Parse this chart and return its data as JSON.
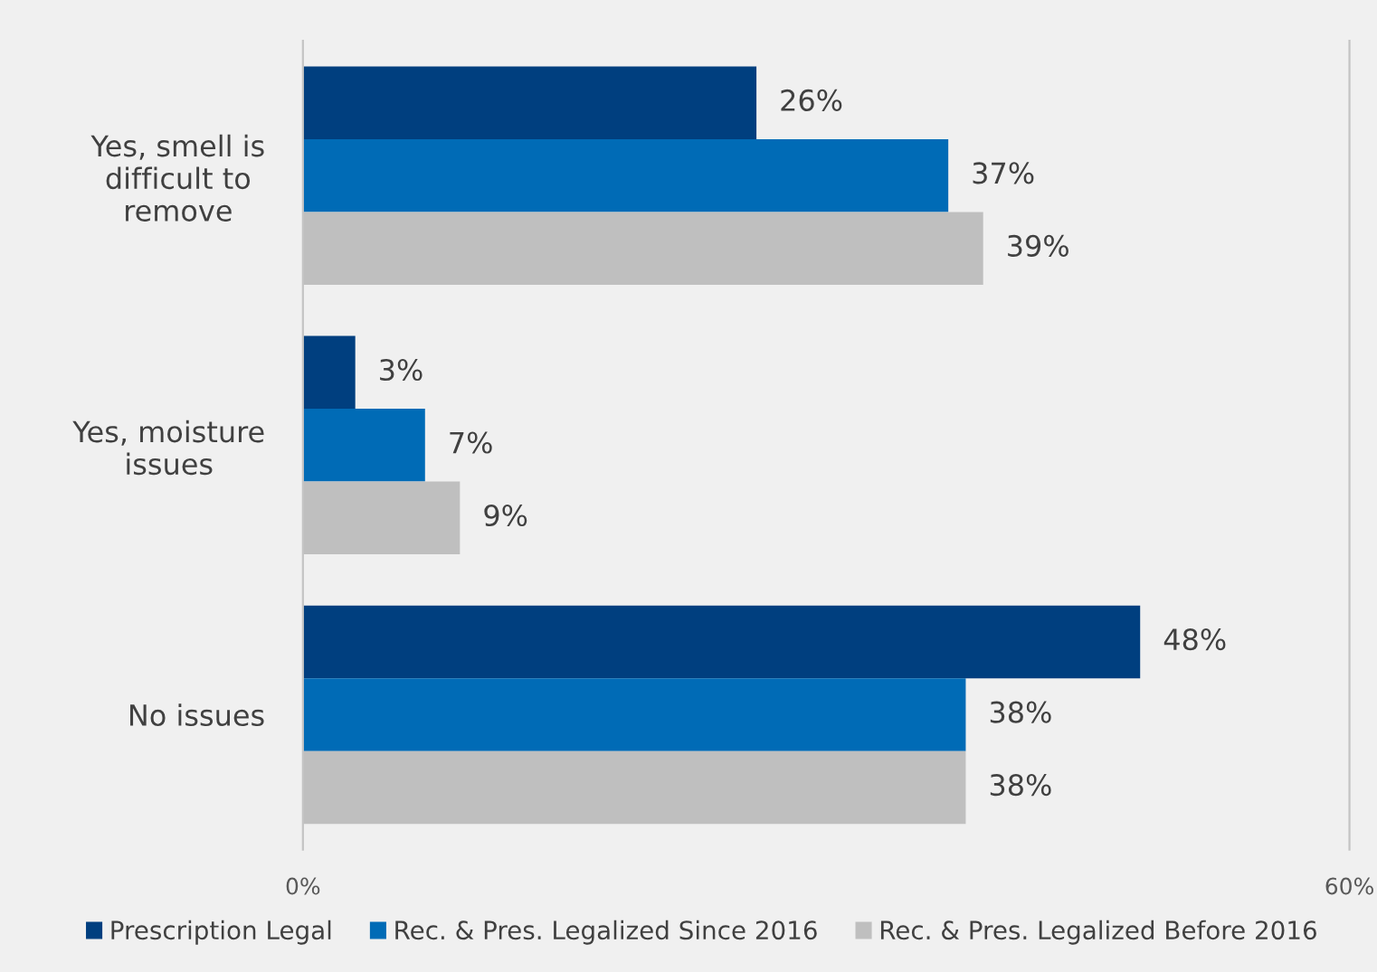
{
  "chart_data": {
    "type": "bar",
    "orientation": "horizontal",
    "categories": [
      "Yes, smell is\ndifficult to\nremove",
      "Yes, moisture\nissues",
      "No issues"
    ],
    "series": [
      {
        "name": "Prescription Legal",
        "color": "#003f7f",
        "values": [
          26,
          3,
          48
        ],
        "value_labels": [
          "26%",
          "3%",
          "48%"
        ]
      },
      {
        "name": "Rec. & Pres. Legalized Since 2016",
        "color": "#006bb6",
        "values": [
          37,
          7,
          38
        ],
        "value_labels": [
          "37%",
          "7%",
          "38%"
        ]
      },
      {
        "name": "Rec. & Pres. Legalized Before 2016",
        "color": "#bfbfbf",
        "values": [
          39,
          9,
          38
        ],
        "value_labels": [
          "39%",
          "9%",
          "38%"
        ]
      }
    ],
    "xlim": [
      0,
      60
    ],
    "xticks": [
      {
        "value": 0,
        "label": "0%"
      },
      {
        "value": 60,
        "label": "60%"
      }
    ],
    "legend": "bottom"
  }
}
